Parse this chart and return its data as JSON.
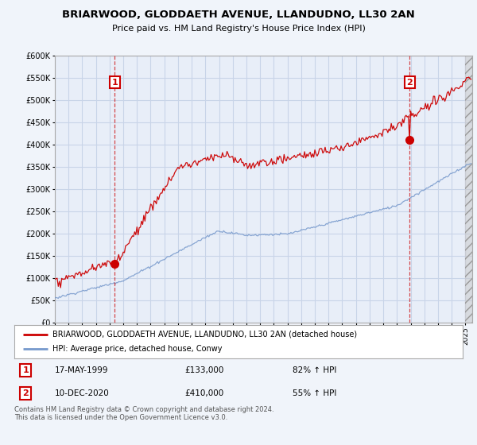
{
  "title1": "BRIARWOOD, GLODDAETH AVENUE, LLANDUDNO, LL30 2AN",
  "title2": "Price paid vs. HM Land Registry's House Price Index (HPI)",
  "bg_color": "#f0f4fa",
  "plot_bg_color": "#e8eef8",
  "grid_color": "#c8d4e8",
  "red_line_color": "#cc0000",
  "blue_line_color": "#7799cc",
  "legend_label1": "BRIARWOOD, GLODDAETH AVENUE, LLANDUDNO, LL30 2AN (detached house)",
  "legend_label2": "HPI: Average price, detached house, Conwy",
  "footnote": "Contains HM Land Registry data © Crown copyright and database right 2024.\nThis data is licensed under the Open Government Licence v3.0.",
  "table_row1": [
    "1",
    "17-MAY-1999",
    "£133,000",
    "82% ↑ HPI"
  ],
  "table_row2": [
    "2",
    "10-DEC-2020",
    "£410,000",
    "55% ↑ HPI"
  ],
  "ylim_max": 600000,
  "ylim_min": 0,
  "sale1_year": 1999.37,
  "sale1_price": 133000,
  "sale2_year": 2020.92,
  "sale2_price": 410000
}
